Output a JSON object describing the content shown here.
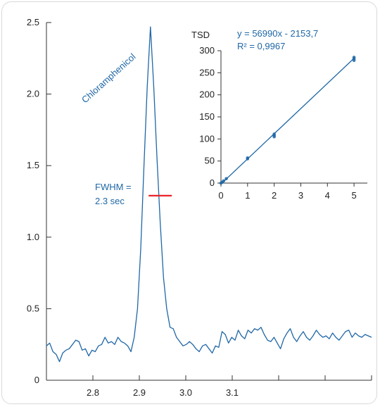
{
  "chart_data": [
    {
      "type": "line",
      "title": "",
      "xlabel": "",
      "ylabel": "",
      "xlim": [
        2.7,
        3.4
      ],
      "ylim": [
        0,
        2.5
      ],
      "x_ticks": [
        2.8,
        2.9,
        3.0,
        3.1
      ],
      "y_ticks": [
        "0",
        "0.5",
        "1.0",
        "1.5",
        "2.0",
        "2.5"
      ],
      "grid": false,
      "line_color": "#1f67a6",
      "series": [
        {
          "x": [
            2.7,
            2.707,
            2.714,
            2.721,
            2.728,
            2.735,
            2.742,
            2.749,
            2.756,
            2.763,
            2.77,
            2.777,
            2.784,
            2.791,
            2.798,
            2.805,
            2.812,
            2.819,
            2.826,
            2.833,
            2.84,
            2.847,
            2.854,
            2.861,
            2.868,
            2.875,
            2.882,
            2.889,
            2.896,
            2.903,
            2.91,
            2.917,
            2.924,
            2.931,
            2.938,
            2.945,
            2.952,
            2.959,
            2.966,
            2.973,
            2.98,
            2.987,
            2.994,
            3.001,
            3.008,
            3.015,
            3.022,
            3.029,
            3.036,
            3.043,
            3.05,
            3.057,
            3.064,
            3.071,
            3.078,
            3.085,
            3.092,
            3.099,
            3.106,
            3.113,
            3.12,
            3.127,
            3.134,
            3.141,
            3.148,
            3.155,
            3.162,
            3.169,
            3.176,
            3.183,
            3.19,
            3.197,
            3.204,
            3.211,
            3.218,
            3.225,
            3.232,
            3.239,
            3.246,
            3.253,
            3.26,
            3.267,
            3.274,
            3.281,
            3.288,
            3.295,
            3.302,
            3.309,
            3.316,
            3.323,
            3.33,
            3.337,
            3.344,
            3.351,
            3.358,
            3.365,
            3.372,
            3.379,
            3.386,
            3.393,
            3.4
          ],
          "y": [
            0.24,
            0.26,
            0.2,
            0.18,
            0.13,
            0.19,
            0.21,
            0.22,
            0.25,
            0.28,
            0.27,
            0.21,
            0.22,
            0.17,
            0.21,
            0.2,
            0.24,
            0.25,
            0.3,
            0.26,
            0.27,
            0.25,
            0.3,
            0.27,
            0.26,
            0.24,
            0.2,
            0.3,
            0.5,
            0.92,
            1.5,
            2.05,
            2.47,
            2.05,
            1.55,
            1.1,
            0.72,
            0.5,
            0.37,
            0.36,
            0.3,
            0.27,
            0.24,
            0.25,
            0.27,
            0.25,
            0.22,
            0.2,
            0.24,
            0.25,
            0.22,
            0.19,
            0.24,
            0.23,
            0.34,
            0.32,
            0.26,
            0.3,
            0.28,
            0.35,
            0.31,
            0.29,
            0.35,
            0.33,
            0.36,
            0.35,
            0.37,
            0.32,
            0.28,
            0.27,
            0.3,
            0.26,
            0.22,
            0.29,
            0.33,
            0.36,
            0.3,
            0.27,
            0.31,
            0.34,
            0.3,
            0.28,
            0.31,
            0.35,
            0.32,
            0.3,
            0.31,
            0.29,
            0.33,
            0.3,
            0.28,
            0.31,
            0.34,
            0.35,
            0.3,
            0.33,
            0.31,
            0.3,
            0.32,
            0.31,
            0.3
          ]
        }
      ],
      "annotations": {
        "compound_label": "Chloramphenicol",
        "fwhm_line1": "FWHM =",
        "fwhm_line2": "2.3 sec",
        "fwhm_color": "#e8242a",
        "fwhm_half_height": 1.29,
        "fwhm_x_range": [
          2.92,
          2.97
        ]
      }
    },
    {
      "type": "scatter",
      "title": "",
      "xlabel": "",
      "ylabel": "TSD",
      "xlim": [
        0,
        5.5
      ],
      "ylim": [
        0,
        300
      ],
      "x_ticks": [
        "0",
        "1",
        "2",
        "3",
        "4",
        "5"
      ],
      "y_ticks": [
        "0",
        "50",
        "100",
        "150",
        "200",
        "250",
        "300"
      ],
      "grid": false,
      "point_color": "#1f67a6",
      "points": {
        "x": [
          0,
          0.05,
          0.1,
          0.2,
          1,
          1,
          2,
          2,
          2,
          5,
          5,
          5
        ],
        "y": [
          0,
          2,
          5,
          10,
          55,
          57,
          105,
          108,
          111,
          278,
          282,
          285
        ]
      },
      "trendline": {
        "slope": 56.99,
        "intercept": -2.1537,
        "x_range": [
          0,
          5
        ],
        "equation": "y = 56990x - 2153,7",
        "r_squared": "R² = 0,9967"
      }
    }
  ]
}
